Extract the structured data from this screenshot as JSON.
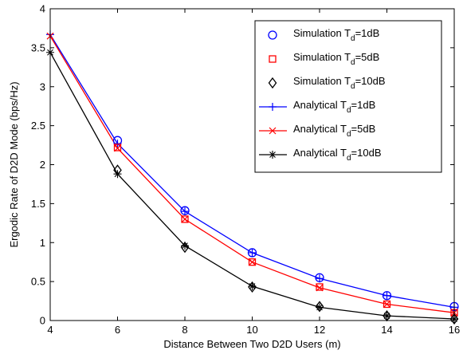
{
  "chart_data": {
    "type": "line",
    "title": "",
    "xlabel": "Distance Between Two D2D Users (m)",
    "ylabel": "Ergodic Rate of D2D Mode (bps/Hz)",
    "xlim": [
      4,
      16
    ],
    "ylim": [
      0,
      4
    ],
    "xticks": [
      4,
      6,
      8,
      10,
      12,
      14,
      16
    ],
    "yticks": [
      0,
      0.5,
      1,
      1.5,
      2,
      2.5,
      3,
      3.5,
      4
    ],
    "xtick_labels": [
      "4",
      "6",
      "8",
      "10",
      "12",
      "14",
      "16"
    ],
    "ytick_labels": [
      "0",
      "0.5",
      "1",
      "1.5",
      "2",
      "2.5",
      "3",
      "3.5",
      "4"
    ],
    "grid": false,
    "legend_position": "top-right",
    "series": [
      {
        "name": "Simulation T_d=1dB",
        "label_main": "Simulation T",
        "label_sub": "d",
        "label_tail": "=1dB",
        "style": "marker",
        "marker": "circle",
        "color": "#0000ff",
        "x": [
          6,
          8,
          10,
          12,
          14,
          16
        ],
        "y": [
          2.31,
          1.41,
          0.87,
          0.55,
          0.32,
          0.18
        ]
      },
      {
        "name": "Simulation T_d=5dB",
        "label_main": "Simulation T",
        "label_sub": "d",
        "label_tail": "=5dB",
        "style": "marker",
        "marker": "square",
        "color": "#ff0000",
        "x": [
          6,
          8,
          10,
          12,
          14,
          16
        ],
        "y": [
          2.22,
          1.3,
          0.75,
          0.43,
          0.21,
          0.1
        ]
      },
      {
        "name": "Simulation T_d=10dB",
        "label_main": "Simulation T",
        "label_sub": "d",
        "label_tail": "=10dB",
        "style": "marker",
        "marker": "diamond",
        "color": "#000000",
        "x": [
          6,
          8,
          10,
          12,
          14,
          16
        ],
        "y": [
          1.93,
          0.94,
          0.43,
          0.18,
          0.06,
          0.02
        ]
      },
      {
        "name": "Analytical T_d=1dB",
        "label_main": "Analytical T",
        "label_sub": "d",
        "label_tail": "=1dB",
        "style": "line",
        "marker": "plus",
        "color": "#0000ff",
        "x": [
          4,
          6,
          8,
          10,
          12,
          14,
          16
        ],
        "y": [
          3.67,
          2.27,
          1.4,
          0.87,
          0.54,
          0.32,
          0.17
        ]
      },
      {
        "name": "Analytical T_d=5dB",
        "label_main": "Analytical T",
        "label_sub": "d",
        "label_tail": "=5dB",
        "style": "line",
        "marker": "x",
        "color": "#ff0000",
        "x": [
          4,
          6,
          8,
          10,
          12,
          14,
          16
        ],
        "y": [
          3.65,
          2.21,
          1.3,
          0.75,
          0.42,
          0.21,
          0.1
        ]
      },
      {
        "name": "Analytical T_d=10dB",
        "label_main": "Analytical T",
        "label_sub": "d",
        "label_tail": "=10dB",
        "style": "line",
        "marker": "star",
        "color": "#000000",
        "x": [
          4,
          6,
          8,
          10,
          12,
          14,
          16
        ],
        "y": [
          3.44,
          1.88,
          0.96,
          0.44,
          0.17,
          0.06,
          0.02
        ]
      }
    ]
  }
}
